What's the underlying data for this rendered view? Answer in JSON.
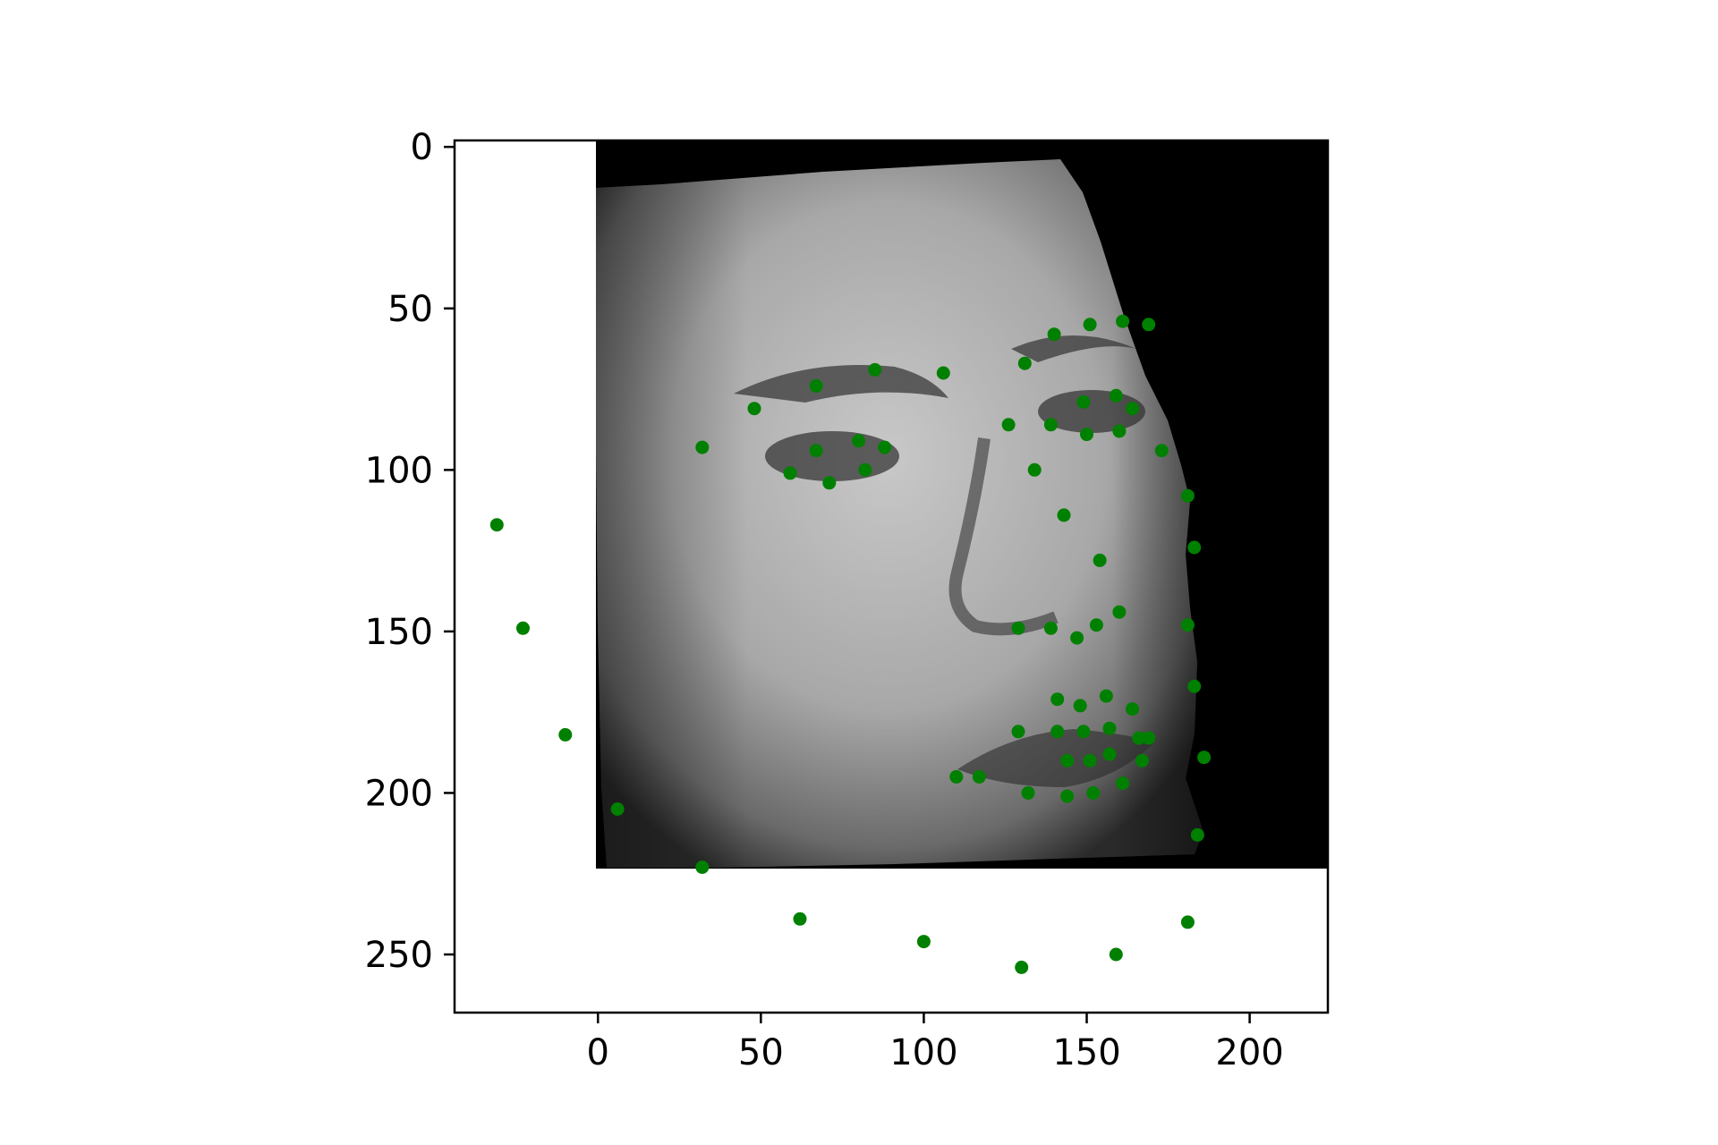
{
  "chart_data": {
    "type": "scatter",
    "title": "",
    "xlabel": "",
    "ylabel": "",
    "xlim": [
      -44,
      224
    ],
    "ylim": [
      268,
      -2
    ],
    "y_inverted": true,
    "grid": false,
    "legend": "none",
    "xticks": [
      0,
      50,
      100,
      150,
      200
    ],
    "yticks": [
      0,
      50,
      100,
      150,
      200,
      250
    ],
    "xtick_labels": [
      "0",
      "50",
      "100",
      "150",
      "200"
    ],
    "ytick_labels": [
      "0",
      "50",
      "100",
      "150",
      "200",
      "250"
    ],
    "background_image": {
      "description_icon": "grayscale-face-photo",
      "extent": {
        "x": [
          0,
          224
        ],
        "y": [
          0,
          224
        ]
      }
    },
    "marker_color": "#008000",
    "series": [
      {
        "name": "",
        "points": [
          [
            -31,
            117
          ],
          [
            -23,
            149
          ],
          [
            -10,
            182
          ],
          [
            6,
            205
          ],
          [
            32,
            223
          ],
          [
            62,
            239
          ],
          [
            100,
            246
          ],
          [
            130,
            254
          ],
          [
            159,
            250
          ],
          [
            181,
            240
          ],
          [
            184,
            213
          ],
          [
            186,
            189
          ],
          [
            183,
            167
          ],
          [
            181,
            148
          ],
          [
            183,
            124
          ],
          [
            181,
            108
          ],
          [
            173,
            94
          ],
          [
            169,
            55
          ],
          [
            161,
            54
          ],
          [
            151,
            55
          ],
          [
            140,
            58
          ],
          [
            131,
            67
          ],
          [
            48,
            81
          ],
          [
            67,
            74
          ],
          [
            85,
            69
          ],
          [
            106,
            70
          ],
          [
            32,
            93
          ],
          [
            59,
            101
          ],
          [
            71,
            104
          ],
          [
            82,
            100
          ],
          [
            88,
            93
          ],
          [
            67,
            94
          ],
          [
            80,
            91
          ],
          [
            126,
            86
          ],
          [
            134,
            100
          ],
          [
            143,
            114
          ],
          [
            154,
            128
          ],
          [
            129,
            149
          ],
          [
            139,
            149
          ],
          [
            147,
            152
          ],
          [
            153,
            148
          ],
          [
            160,
            144
          ],
          [
            139,
            86
          ],
          [
            149,
            79
          ],
          [
            150,
            89
          ],
          [
            159,
            77
          ],
          [
            160,
            88
          ],
          [
            164,
            81
          ],
          [
            132,
            200
          ],
          [
            144,
            201
          ],
          [
            152,
            200
          ],
          [
            161,
            197
          ],
          [
            167,
            190
          ],
          [
            141,
            171
          ],
          [
            148,
            173
          ],
          [
            156,
            170
          ],
          [
            164,
            174
          ],
          [
            166,
            183
          ],
          [
            169,
            183
          ],
          [
            129,
            181
          ],
          [
            141,
            181
          ],
          [
            149,
            181
          ],
          [
            157,
            180
          ],
          [
            144,
            190
          ],
          [
            151,
            190
          ],
          [
            157,
            188
          ],
          [
            110,
            195
          ],
          [
            117,
            195
          ]
        ]
      }
    ]
  }
}
